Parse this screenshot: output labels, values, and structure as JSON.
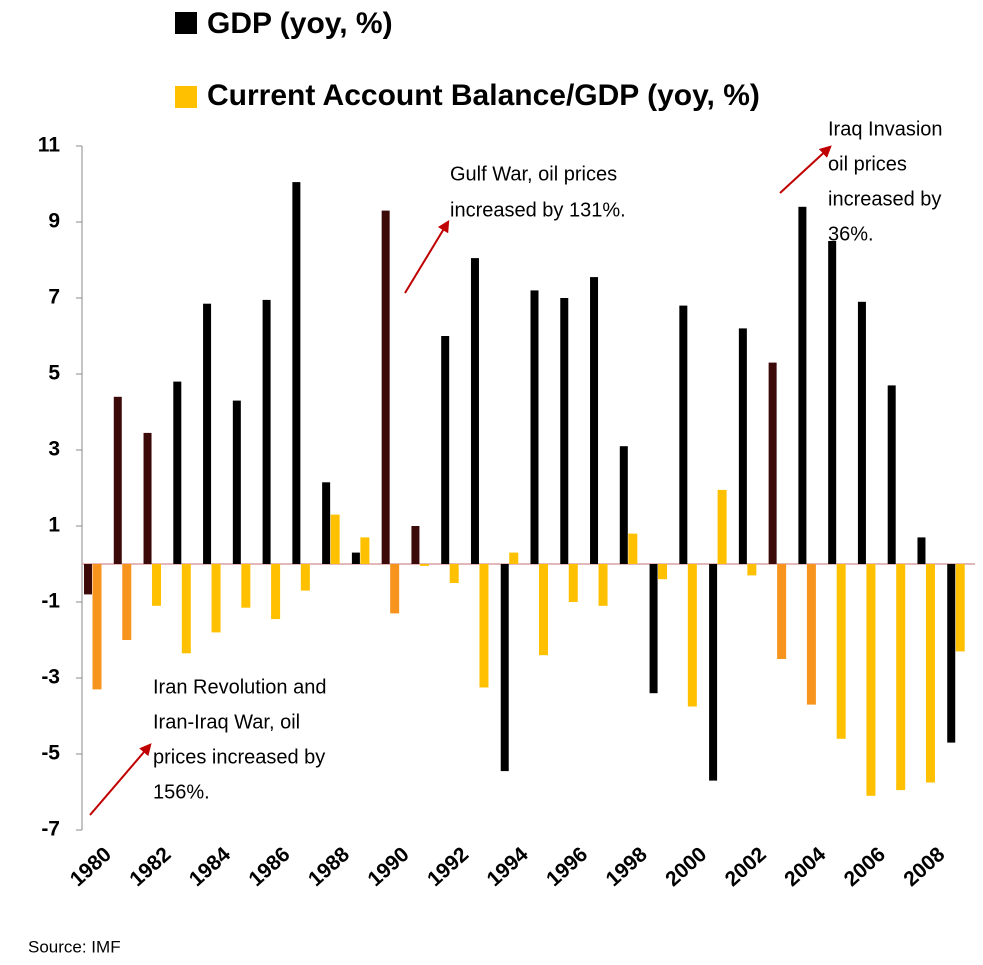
{
  "chart_data": {
    "type": "bar",
    "categories": [
      "1980",
      null,
      "1982",
      null,
      "1984",
      null,
      "1986",
      null,
      "1988",
      null,
      "1990",
      null,
      "1992",
      null,
      "1994",
      null,
      "1996",
      null,
      "1998",
      null,
      "2000",
      null,
      "2002",
      null,
      "2004",
      null,
      "2006",
      null,
      "2008",
      null
    ],
    "series": [
      {
        "name": "GDP (yoy, %)",
        "color": "#000000",
        "colors": [
          "#3d0a0a",
          "#3d0a0a",
          "#3d0a0a",
          "#000000",
          "#000000",
          "#000000",
          "#000000",
          "#000000",
          "#000000",
          "#000000",
          "#3d0a0a",
          "#3d0a0a",
          "#000000",
          "#000000",
          "#000000",
          "#000000",
          "#000000",
          "#000000",
          "#000000",
          "#000000",
          "#000000",
          "#000000",
          "#000000",
          "#3d0a0a",
          "#000000",
          "#000000",
          "#000000",
          "#000000",
          "#000000",
          "#000000"
        ],
        "values": [
          -0.8,
          4.4,
          3.45,
          4.8,
          6.85,
          4.3,
          6.95,
          10.05,
          2.15,
          0.3,
          9.3,
          1.0,
          6.0,
          8.05,
          -5.45,
          7.2,
          7.0,
          7.55,
          3.1,
          -3.4,
          6.8,
          -5.7,
          6.2,
          5.3,
          9.4,
          8.5,
          6.9,
          4.7,
          0.7,
          -4.7
        ]
      },
      {
        "name": "Current Account Balance/GDP (yoy, %)",
        "color": "#ffc000",
        "colors": [
          "#f7941d",
          "#f7941d",
          "#ffc000",
          "#ffc000",
          "#ffc000",
          "#ffc000",
          "#ffc000",
          "#ffc000",
          "#ffc000",
          "#ffc000",
          "#f7941d",
          "#ffc000",
          "#ffc000",
          "#ffc000",
          "#ffc000",
          "#ffc000",
          "#ffc000",
          "#ffc000",
          "#ffc000",
          "#ffc000",
          "#ffc000",
          "#ffc000",
          "#ffc000",
          "#f7941d",
          "#f7941d",
          "#ffc000",
          "#ffc000",
          "#ffc000",
          "#ffc000",
          "#ffc000"
        ],
        "values": [
          -3.3,
          -2.0,
          -1.1,
          -2.35,
          -1.8,
          -1.15,
          -1.45,
          -0.7,
          1.3,
          0.7,
          -1.3,
          -0.05,
          -0.5,
          -3.25,
          0.3,
          -2.4,
          -1.0,
          -1.1,
          0.8,
          -0.4,
          -3.75,
          1.95,
          -0.3,
          -2.5,
          -3.7,
          -4.6,
          -6.1,
          -5.95,
          -5.75,
          -2.3
        ]
      }
    ],
    "ylim": [
      -7,
      11
    ],
    "yticks": [
      -7,
      -5,
      -3,
      -1,
      1,
      3,
      5,
      7,
      9,
      11
    ],
    "annotations": [
      [
        "Gulf War, oil prices",
        "increased by 131%."
      ],
      [
        "Iraq Invasion",
        "oil prices",
        "increased by",
        "36%."
      ],
      [
        "Iran Revolution and",
        "Iran-Iraq War, oil",
        "prices increased by",
        "156%."
      ]
    ],
    "source": "Source: IMF"
  }
}
